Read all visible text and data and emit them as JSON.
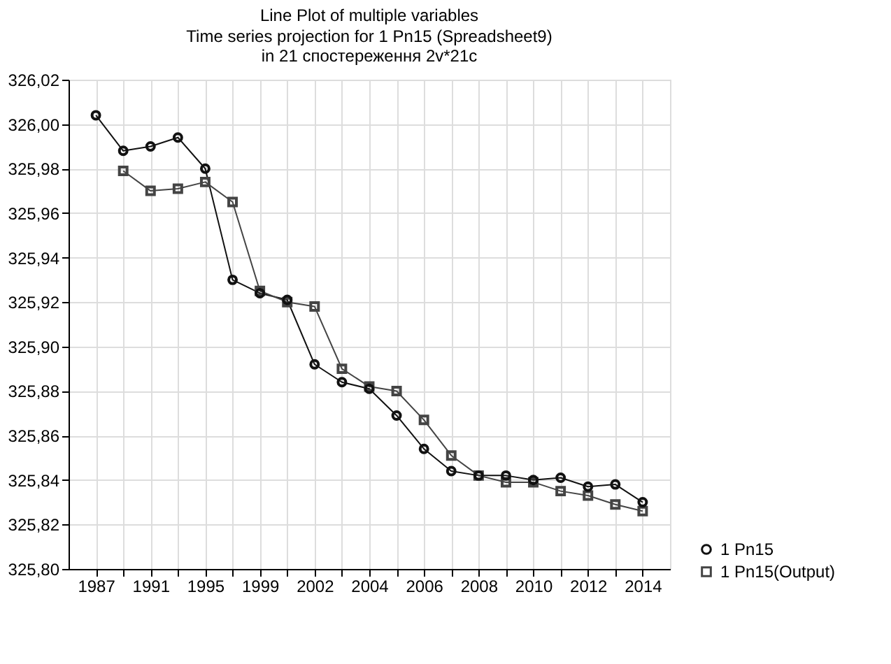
{
  "chart_data": {
    "type": "line",
    "title": "Line Plot of multiple variables",
    "subtitle": "Time series projection for 1 Pn15 (Spreadsheet9)\nin 21 спостережeння 2v*21c",
    "categories": [
      "1987",
      null,
      "1991",
      null,
      "1995",
      null,
      "1999",
      null,
      "2002",
      null,
      "2004",
      null,
      "2006",
      null,
      "2008",
      null,
      "2010",
      null,
      "2012",
      null,
      "2014"
    ],
    "series": [
      {
        "name": "1 Pn15",
        "color": "#111111",
        "marker": "circle",
        "values": [
          326.004,
          325.988,
          325.99,
          325.994,
          325.98,
          325.93,
          325.924,
          325.921,
          325.892,
          325.884,
          325.881,
          325.869,
          325.854,
          325.844,
          325.842,
          325.842,
          325.84,
          325.841,
          325.837,
          325.838,
          325.83
        ]
      },
      {
        "name": "1 Pn15(Output)",
        "color": "#444444",
        "marker": "square",
        "values": [
          null,
          325.979,
          325.97,
          325.971,
          325.974,
          325.965,
          325.925,
          325.92,
          325.918,
          325.89,
          325.882,
          325.88,
          325.867,
          325.851,
          325.842,
          325.839,
          325.839,
          325.835,
          325.833,
          325.829,
          325.826
        ]
      }
    ],
    "ylim": [
      325.8,
      326.02
    ],
    "yticks": [
      {
        "value": 325.8,
        "label": "325,80"
      },
      {
        "value": 325.82,
        "label": "325,82"
      },
      {
        "value": 325.84,
        "label": "325,84"
      },
      {
        "value": 325.86,
        "label": "325,86"
      },
      {
        "value": 325.88,
        "label": "325,88"
      },
      {
        "value": 325.9,
        "label": "325,90"
      },
      {
        "value": 325.92,
        "label": "325,92"
      },
      {
        "value": 325.94,
        "label": "325,94"
      },
      {
        "value": 325.96,
        "label": "325,96"
      },
      {
        "value": 325.98,
        "label": "325,98"
      },
      {
        "value": 326.0,
        "label": "326,00"
      },
      {
        "value": 326.02,
        "label": "326,02"
      }
    ],
    "grid": true,
    "legend": "bottom right",
    "line_style": "solid"
  }
}
